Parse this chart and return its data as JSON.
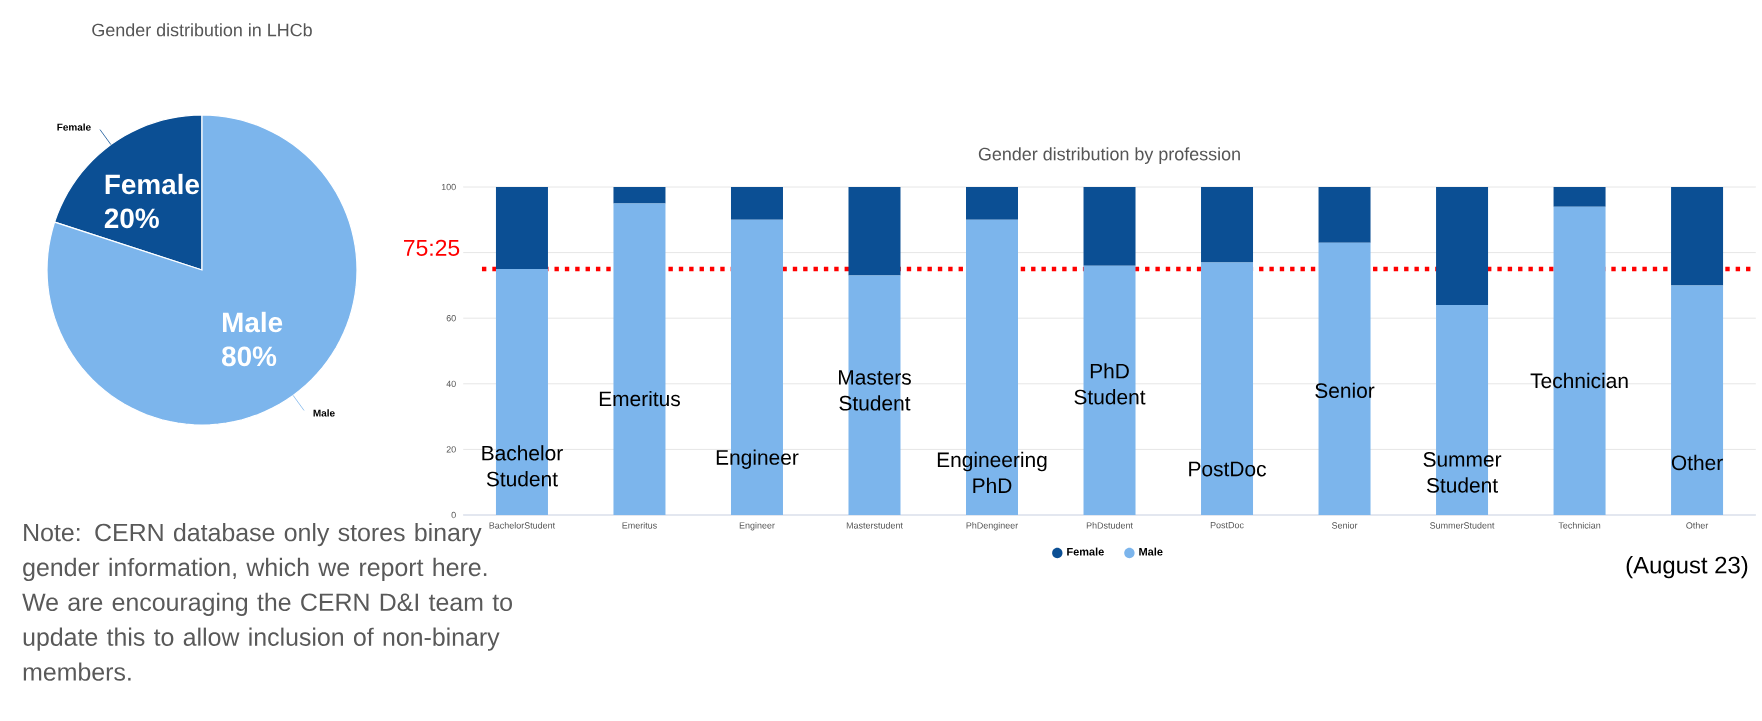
{
  "chart_data": [
    {
      "type": "pie",
      "title": "Gender distribution in LHCb",
      "categories": [
        "Female",
        "Male"
      ],
      "values": [
        20,
        80
      ],
      "value_labels": [
        "20%",
        "80%"
      ],
      "colors": [
        "#0b4f94",
        "#7cb5ec"
      ],
      "annotations": [
        "Note: CERN database only stores binary gender information, which we report here. We are encouraging the CERN D&I team to update this to allow inclusion of non-binary members."
      ]
    },
    {
      "type": "bar",
      "stacked": true,
      "title": "Gender distribution by profession",
      "categories": [
        "BachelorStudent",
        "Emeritus",
        "Engineer",
        "Masterstudent",
        "PhDengineer",
        "PhDstudent",
        "PostDoc",
        "Senior",
        "SummerStudent",
        "Technician",
        "Other"
      ],
      "series": [
        {
          "name": "Male",
          "color": "#7cb5ec",
          "values": [
            75,
            95,
            90,
            73,
            90,
            76,
            77,
            83,
            64,
            94,
            70
          ]
        },
        {
          "name": "Female",
          "color": "#0b4f94",
          "values": [
            25,
            5,
            10,
            27,
            10,
            24,
            23,
            17,
            36,
            6,
            30
          ]
        }
      ],
      "ylim": [
        0,
        100
      ],
      "yticks": [
        0,
        20,
        40,
        60,
        {
          "value": 80,
          "label": null
        },
        100
      ],
      "grid": "y",
      "legend": "bottom",
      "marker": "circle",
      "ref_lines": [
        {
          "axis": "y",
          "value": 75,
          "label": "75:25",
          "color": "#ff0000",
          "line_style": "dotted"
        }
      ],
      "annotations": [
        "Bachelor Student",
        "Emeritus",
        "Engineer",
        "Masters Student",
        "Engineering PhD",
        "PhD Student",
        "PostDoc",
        "Senior",
        "Summer Student",
        "Technician",
        "Other",
        "(August 23)"
      ]
    }
  ]
}
